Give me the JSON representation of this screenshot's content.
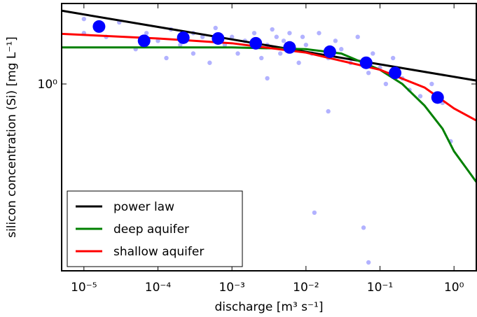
{
  "chart_data": {
    "type": "scatter",
    "x_label": "discharge [m³  s⁻¹]",
    "y_label": "silicon concentration (Si) [mg L⁻¹]",
    "log_x": true,
    "log_y": true,
    "xlim": [
      5e-06,
      2
    ],
    "ylim": [
      0.2,
      2.0
    ],
    "xticks": [
      {
        "value": 1e-05,
        "label": "10⁻⁵"
      },
      {
        "value": 0.0001,
        "label": "10⁻⁴"
      },
      {
        "value": 0.001,
        "label": "10⁻³"
      },
      {
        "value": 0.01,
        "label": "10⁻²"
      },
      {
        "value": 0.1,
        "label": "10⁻¹"
      },
      {
        "value": 1,
        "label": "10⁰"
      }
    ],
    "yticks": [
      {
        "value": 1,
        "label": "10⁰"
      }
    ],
    "legend": "lower left",
    "points": {
      "color": "#0000ff",
      "x": [
        1e-05,
        1e-05,
        1.5e-05,
        2e-05,
        3e-05,
        5e-05,
        7e-05,
        0.0001,
        0.00013,
        0.00015,
        0.0002,
        0.0003,
        0.0003,
        0.0004,
        0.0005,
        0.0006,
        0.0008,
        0.001,
        0.0012,
        0.0015,
        0.002,
        0.0025,
        0.003,
        0.0035,
        0.004,
        0.0045,
        0.005,
        0.006,
        0.007,
        0.008,
        0.009,
        0.01,
        0.012,
        0.013,
        0.015,
        0.02,
        0.02,
        0.025,
        0.03,
        0.04,
        0.05,
        0.06,
        0.07,
        0.07,
        0.08,
        0.1,
        0.12,
        0.15,
        0.2,
        0.25,
        0.35,
        0.9,
        0.7,
        0.5,
        0.003
      ],
      "y": [
        1.75,
        1.55,
        1.6,
        1.5,
        1.7,
        1.35,
        1.55,
        1.45,
        1.25,
        1.6,
        1.4,
        1.55,
        1.3,
        1.5,
        1.2,
        1.62,
        1.4,
        1.5,
        1.3,
        1.45,
        1.55,
        1.25,
        1.4,
        1.6,
        1.5,
        1.3,
        1.45,
        1.55,
        1.35,
        1.2,
        1.5,
        1.4,
        1.3,
        0.33,
        1.55,
        1.25,
        0.79,
        1.45,
        1.35,
        1.2,
        1.5,
        0.29,
        1.1,
        0.215,
        1.3,
        1.15,
        1.0,
        1.25,
        1.05,
        0.95,
        0.9,
        0.61,
        0.85,
        1.0,
        1.05
      ]
    },
    "means": {
      "color": "#0000ff",
      "x": [
        1.6e-05,
        6.5e-05,
        0.00022,
        0.00065,
        0.0021,
        0.006,
        0.021,
        0.065,
        0.16,
        0.6
      ],
      "y": [
        1.64,
        1.45,
        1.49,
        1.48,
        1.42,
        1.37,
        1.32,
        1.2,
        1.1,
        0.89
      ]
    },
    "series": [
      {
        "name": "power law",
        "color": "#000000",
        "x": [
          5e-06,
          2
        ],
        "values": [
          1.88,
          1.03
        ]
      },
      {
        "name": "deep aquifer",
        "color": "#008000",
        "x": [
          5e-06,
          0.001,
          0.01,
          0.03,
          0.1,
          0.2,
          0.4,
          0.7,
          1,
          1.5,
          2
        ],
        "values": [
          1.37,
          1.37,
          1.35,
          1.3,
          1.13,
          1.0,
          0.83,
          0.68,
          0.56,
          0.48,
          0.43
        ]
      },
      {
        "name": "shallow aquifer",
        "color": "#ff0000",
        "x": [
          5e-06,
          0.0001,
          0.001,
          0.01,
          0.1,
          0.4,
          1,
          2
        ],
        "values": [
          1.54,
          1.48,
          1.42,
          1.31,
          1.13,
          0.97,
          0.81,
          0.73
        ]
      }
    ]
  }
}
